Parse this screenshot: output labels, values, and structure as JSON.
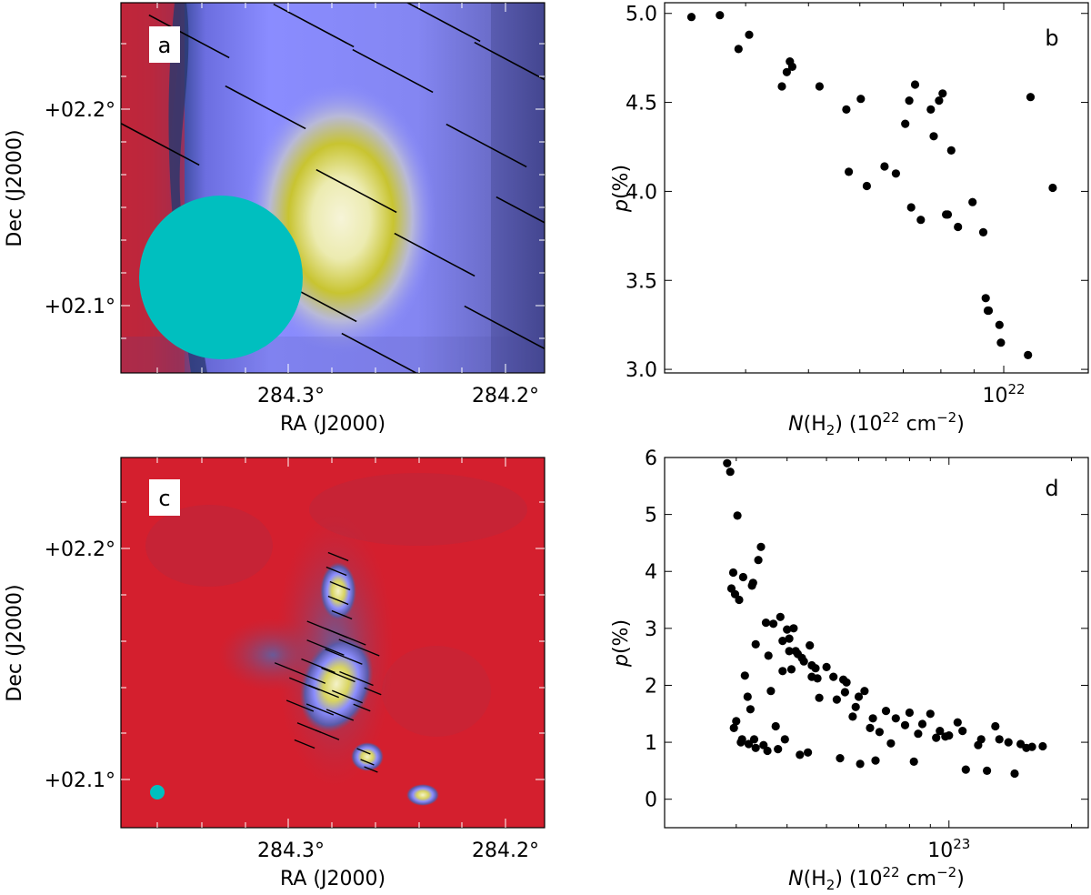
{
  "panels": {
    "a": {
      "letter": "a",
      "xlabel": "RA (J2000)",
      "ylabel": "Dec (J2000)",
      "xticks": [
        "284.3°",
        "284.2°"
      ],
      "yticks": [
        "+02.2°",
        "+02.1°"
      ]
    },
    "c": {
      "letter": "c",
      "xlabel": "RA (J2000)",
      "ylabel": "Dec (J2000)",
      "xticks": [
        "284.3°",
        "284.2°"
      ],
      "yticks": [
        "+02.2°",
        "+02.1°"
      ]
    },
    "b": {
      "letter": "b"
    },
    "d": {
      "letter": "d"
    }
  },
  "colors": {
    "map_background": "#d41f2e",
    "map_mid": "#8c8cff",
    "map_peak": "#f0f0c0",
    "beam": "#00bfbf",
    "vectors": "#000000",
    "points": "#000000"
  },
  "chart_data": [
    {
      "type": "scatter",
      "panel": "b",
      "xlabel_main": "N",
      "xlabel_rest": "(H",
      "xlabel_sub": "2",
      "xlabel_unit": ") (10",
      "xlabel_exp": "22",
      "xlabel_tail": " cm",
      "xlabel_tail_exp": "−2",
      "xlabel_close": ")",
      "ylabel_main": "p",
      "ylabel_rest": "(%)",
      "xscale": "log",
      "xlim": [
        3e+21,
        1.35e+22
      ],
      "ylim": [
        2.98,
        5.06
      ],
      "xtick_label_base": "10",
      "xtick_label_exp": "22",
      "xtick_value": 1e+22,
      "yticks": [
        3.0,
        3.5,
        4.0,
        4.5,
        5.0
      ],
      "ytick_labels": [
        "3.0",
        "3.5",
        "4.0",
        "4.5",
        "5.0"
      ],
      "x": [
        3.3e+21,
        3.65e+21,
        3.9e+21,
        4.05e+21,
        4.55e+21,
        4.63e+21,
        4.68e+21,
        4.72e+21,
        5.2e+21,
        5.72e+21,
        5.77e+21,
        6.02e+21,
        6.15e+21,
        6.55e+21,
        6.82e+21,
        7.05e+21,
        7.15e+21,
        7.2e+21,
        7.3e+21,
        7.45e+21,
        7.72e+21,
        7.8e+21,
        7.95e+21,
        8.05e+21,
        8.15e+21,
        8.2e+21,
        8.3e+21,
        8.5e+21,
        8.95e+21,
        9.3e+21,
        9.38e+21,
        9.45e+21,
        9.48e+21,
        9.85e+21,
        9.9e+21,
        1.09e+22,
        1.1e+22,
        1.19e+22
      ],
      "y": [
        4.98,
        4.99,
        4.8,
        4.88,
        4.59,
        4.67,
        4.73,
        4.7,
        4.59,
        4.46,
        4.11,
        4.52,
        4.03,
        4.14,
        4.1,
        4.38,
        4.51,
        3.91,
        4.6,
        3.84,
        4.46,
        4.31,
        4.51,
        4.55,
        3.87,
        3.87,
        4.23,
        3.8,
        3.94,
        3.77,
        3.4,
        3.33,
        3.33,
        3.25,
        3.15,
        3.08,
        4.53,
        4.02
      ]
    },
    {
      "type": "scatter",
      "panel": "d",
      "xlabel_main": "N",
      "xlabel_rest": "(H",
      "xlabel_sub": "2",
      "xlabel_unit": ") (10",
      "xlabel_exp": "22",
      "xlabel_tail": " cm",
      "xlabel_tail_exp": "−2",
      "xlabel_close": ")",
      "ylabel_main": "p",
      "ylabel_rest": "(%)",
      "xscale": "log",
      "xlim": [
        2e+22,
        2.2e+23
      ],
      "ylim": [
        -0.5,
        6.0
      ],
      "xtick_label_base": "10",
      "xtick_label_exp": "23",
      "xtick_value": 1e+23,
      "yticks": [
        0,
        1,
        2,
        3,
        4,
        5,
        6
      ],
      "ytick_labels": [
        "0",
        "1",
        "2",
        "3",
        "4",
        "5",
        "6"
      ],
      "x": [
        2.85e+22,
        2.9e+22,
        2.92e+22,
        2.95e+22,
        2.96e+22,
        2.98e+22,
        3e+22,
        3.02e+22,
        3.05e+22,
        3.1e+22,
        3.12e+22,
        3.15e+22,
        3.2e+22,
        3.22e+22,
        3.25e+22,
        3.3e+22,
        3.32e+22,
        3.35e+22,
        3.4e+22,
        3.45e+22,
        3.5e+22,
        3.55e+22,
        3.6e+22,
        3.7e+22,
        3.75e+22,
        3.8e+22,
        3.85e+22,
        3.9e+22,
        4e+22,
        4.05e+22,
        4.1e+22,
        4.15e+22,
        4.2e+22,
        4.3e+22,
        4.35e+22,
        4.4e+22,
        4.5e+22,
        4.6e+22,
        4.7e+22,
        4.8e+22,
        5e+22,
        5.2e+22,
        5.4e+22,
        5.5e+22,
        5.6e+22,
        5.8e+22,
        6e+22,
        6.2e+22,
        6.4e+22,
        6.6e+22,
        7e+22,
        7.4e+22,
        7.8e+22,
        8.2e+22,
        8.6e+22,
        9e+22,
        9.5e+22,
        1e+23,
        1.05e+23,
        1.1e+23,
        1.2e+23,
        1.3e+23,
        1.4e+23,
        1.5e+23,
        1.6e+23,
        1.7e+23,
        3.35e+22,
        3.65e+22,
        3.9e+22,
        4.25e+22,
        4.6e+22,
        5.3e+22,
        5.9e+22,
        6.5e+22,
        7.2e+22,
        8.4e+22,
        9.3e+22,
        1.08e+23,
        1.18e+23,
        1.33e+23,
        1.45e+23,
        1.55e+23,
        4.05e+22,
        4.55e+22,
        5.55e+22,
        6.05e+22,
        3.08e+22,
        3.28e+22,
        3.58e+22,
        3.95e+22,
        4.75e+22,
        6.75e+22,
        8e+22,
        9.8e+22,
        1.24e+23
      ],
      "y": [
        5.9,
        5.75,
        3.7,
        3.98,
        1.25,
        3.6,
        1.37,
        4.98,
        3.5,
        1.05,
        3.9,
        2.17,
        1.8,
        0.97,
        1.58,
        3.8,
        1.05,
        0.9,
        4.2,
        4.43,
        0.95,
        3.1,
        2.52,
        3.08,
        1.28,
        0.88,
        3.2,
        2.25,
        2.98,
        2.6,
        2.28,
        3.0,
        2.6,
        0.78,
        2.48,
        2.42,
        0.82,
        2.35,
        2.3,
        1.78,
        2.32,
        2.15,
        0.72,
        2.1,
        2.05,
        1.45,
        1.8,
        1.9,
        1.25,
        0.68,
        1.55,
        1.42,
        1.3,
        0.66,
        1.32,
        1.5,
        1.2,
        1.12,
        1.35,
        0.52,
        1.05,
        1.28,
        1.0,
        0.97,
        0.92,
        0.93,
        2.72,
        1.9,
        2.78,
        2.55,
        2.15,
        1.75,
        1.62,
        1.42,
        0.98,
        1.15,
        1.08,
        1.2,
        0.95,
        1.05,
        0.45,
        0.9,
        2.82,
        2.7,
        1.88,
        0.62,
        1.0,
        3.75,
        0.85,
        1.05,
        2.12,
        1.18,
        1.52,
        1.1,
        0.5
      ]
    }
  ]
}
